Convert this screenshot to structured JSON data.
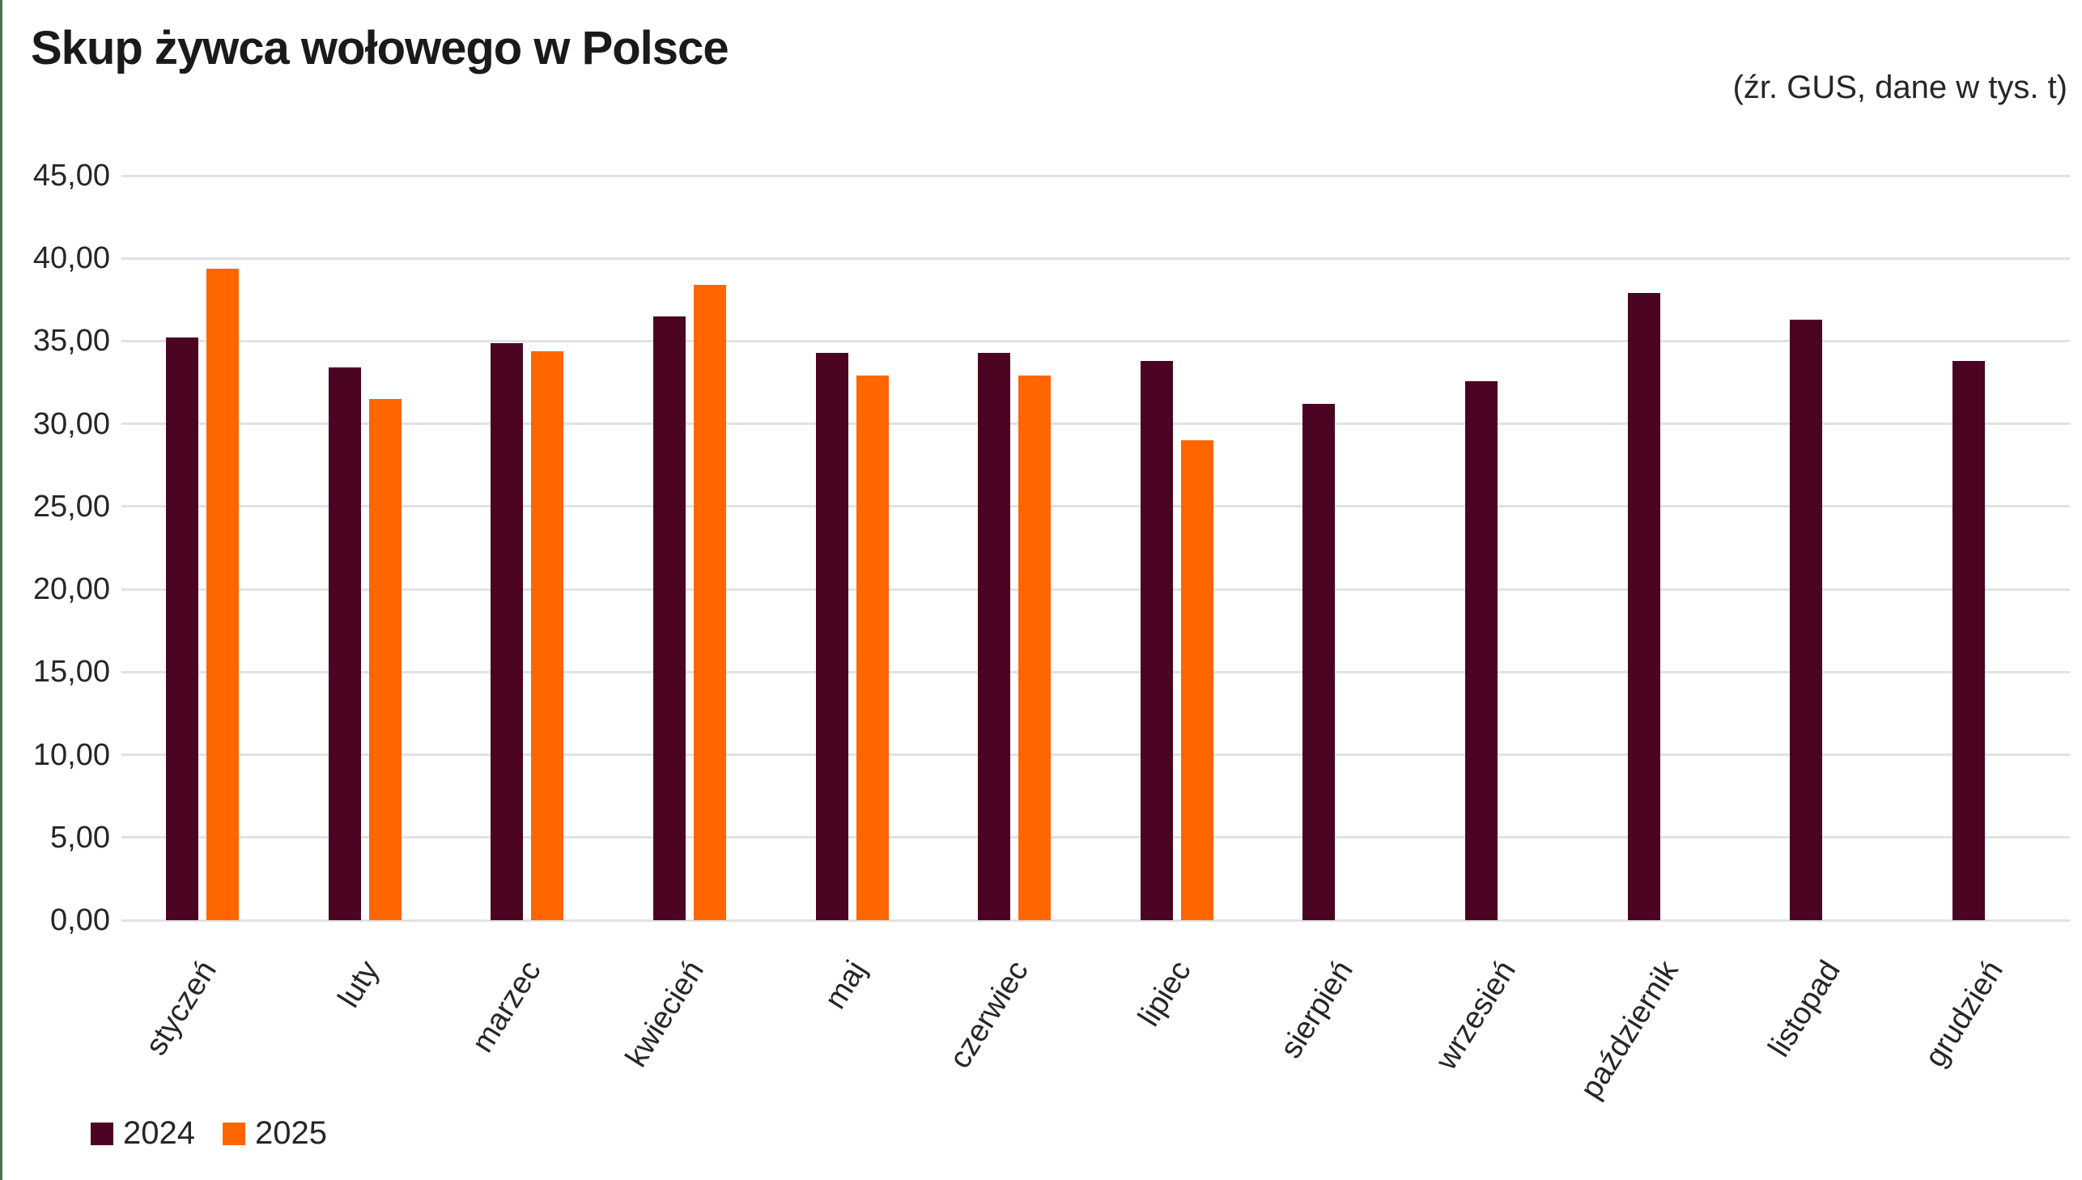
{
  "title": "Skup żywca wołowego w Polsce",
  "source_note": "(źr. GUS, dane w tys. t)",
  "colors": {
    "series_2024": "#4C0423",
    "series_2025": "#FF6600",
    "accent_left_bar": "#4A7153",
    "gridline": "#E2E2E2",
    "text": "#262626",
    "title_text": "#1A1A1A"
  },
  "y_axis": {
    "ticks": [
      "45,00",
      "40,00",
      "35,00",
      "30,00",
      "25,00",
      "20,00",
      "15,00",
      "10,00",
      "5,00",
      "0,00"
    ],
    "min": 0,
    "max": 45,
    "step": 5
  },
  "legend": {
    "position": "bottom-left",
    "items": [
      {
        "label": "2024",
        "color": "#4C0423"
      },
      {
        "label": "2025",
        "color": "#FF6600"
      }
    ]
  },
  "chart_data": {
    "type": "bar",
    "title": "Skup żywca wołowego w Polsce",
    "subtitle": "(źr. GUS, dane w tys. t)",
    "xlabel": "",
    "ylabel": "",
    "ylim": [
      0,
      45
    ],
    "grid": true,
    "legend_position": "bottom-left",
    "categories": [
      "styczeń",
      "luty",
      "marzec",
      "kwiecień",
      "maj",
      "czerwiec",
      "lipiec",
      "sierpień",
      "wrzesień",
      "październik",
      "listopad",
      "grudzień"
    ],
    "series": [
      {
        "name": "2024",
        "color": "#4C0423",
        "values": [
          35.2,
          33.4,
          34.9,
          36.5,
          34.3,
          34.3,
          33.8,
          31.2,
          32.6,
          37.9,
          36.3,
          33.8
        ]
      },
      {
        "name": "2025",
        "color": "#FF6600",
        "values": [
          39.4,
          31.5,
          34.4,
          38.4,
          32.9,
          32.9,
          29.0,
          null,
          null,
          null,
          null,
          null
        ]
      }
    ]
  }
}
